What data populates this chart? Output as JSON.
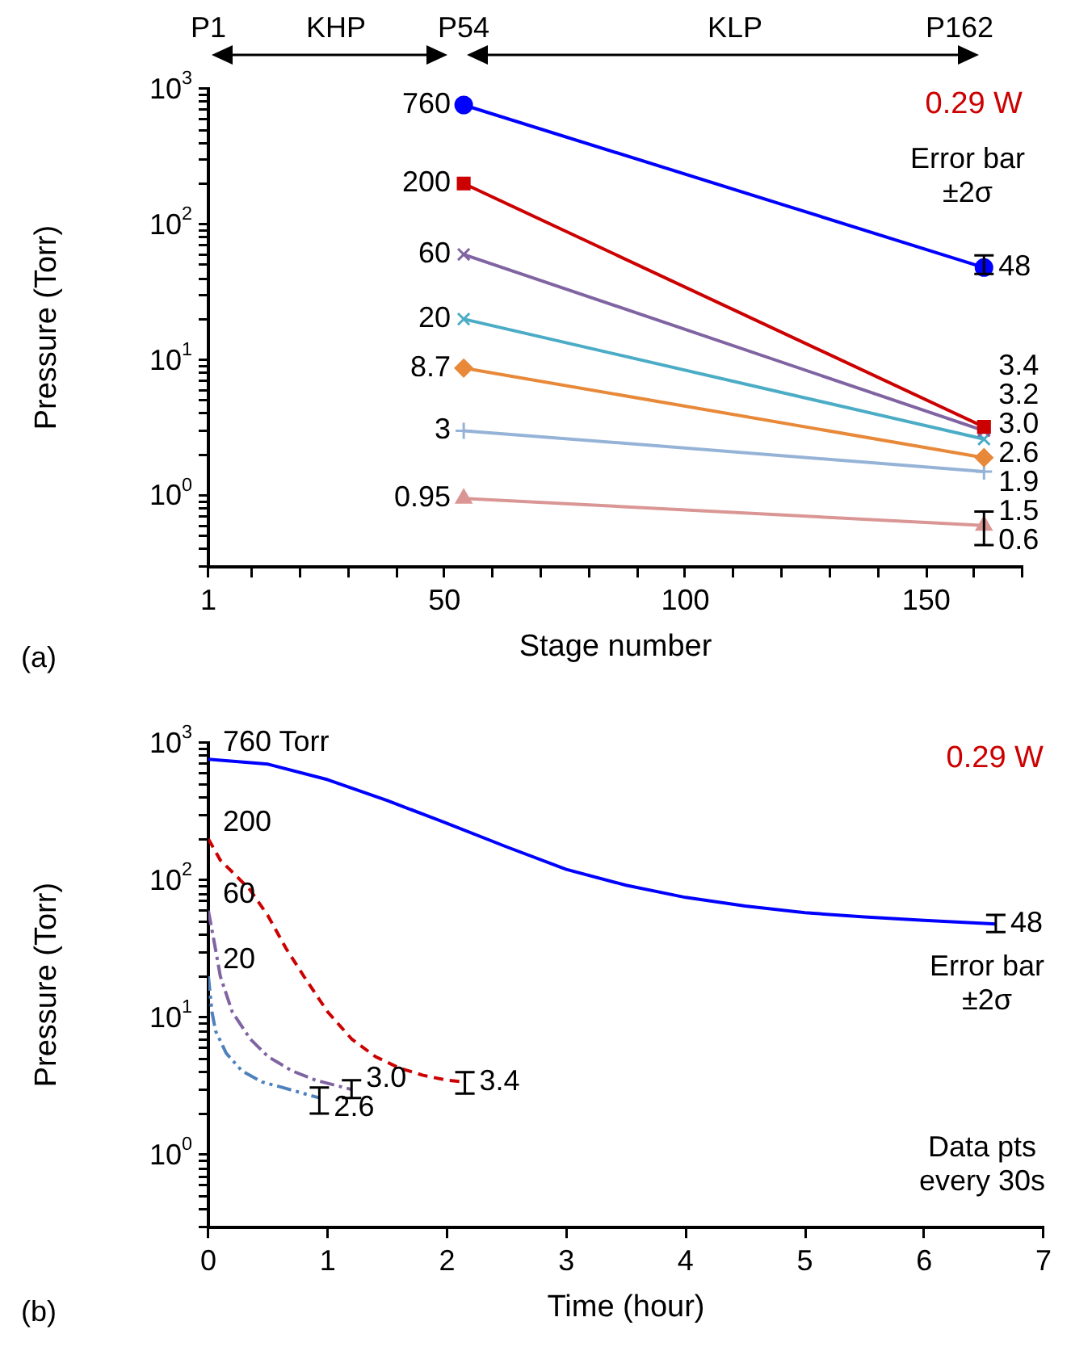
{
  "chart_data": [
    {
      "type": "line",
      "title": "0.29 W",
      "xlabel": "Stage number",
      "ylabel": "Pressure (Torr)",
      "log": "y",
      "x": [
        54,
        162
      ],
      "series": [
        {
          "color": "#0000ff",
          "marker": "circle",
          "values": [
            760,
            48
          ],
          "value_labels": [
            "760",
            "48"
          ],
          "errors": [
            null,
            [
              43,
              59
            ]
          ]
        },
        {
          "color": "#cc0000",
          "marker": "square",
          "values": [
            200,
            3.2
          ],
          "value_labels": [
            "200",
            "3.2"
          ]
        },
        {
          "color": "#8064a2",
          "marker": "cross",
          "values": [
            60,
            3.0
          ],
          "value_labels": [
            "60",
            "3.0"
          ]
        },
        {
          "color": "#4bacc6",
          "marker": "cross",
          "values": [
            20,
            2.6
          ],
          "value_labels": [
            "20",
            "2.6"
          ]
        },
        {
          "color": "#e8893a",
          "marker": "diamond",
          "values": [
            8.7,
            1.9
          ],
          "value_labels": [
            "8.7",
            "1.9"
          ]
        },
        {
          "color": "#95b3d7",
          "marker": "plus",
          "values": [
            3,
            1.5
          ],
          "value_labels": [
            "3",
            "1.5"
          ]
        },
        {
          "color": "#d99694",
          "marker": "triangle",
          "values": [
            0.95,
            0.6
          ],
          "value_labels": [
            "0.95",
            "0.6"
          ],
          "errors": [
            null,
            [
              0.43,
              0.76
            ]
          ]
        }
      ],
      "xlim": [
        1,
        170
      ],
      "xticks": [
        1,
        {
          "value": 10,
          "label": null
        },
        {
          "value": 20,
          "label": null
        },
        {
          "value": 30,
          "label": null
        },
        {
          "value": 40,
          "label": null
        },
        50,
        {
          "value": 60,
          "label": null
        },
        {
          "value": 70,
          "label": null
        },
        {
          "value": 80,
          "label": null
        },
        {
          "value": 90,
          "label": null
        },
        100,
        {
          "value": 110,
          "label": null
        },
        {
          "value": 120,
          "label": null
        },
        {
          "value": 130,
          "label": null
        },
        {
          "value": 140,
          "label": null
        },
        150,
        {
          "value": 160,
          "label": null
        },
        {
          "value": 170,
          "label": null
        }
      ],
      "ylim": [
        0.3,
        1000
      ],
      "yticks": [
        {
          "value": 0.3,
          "label": null
        },
        {
          "value": 0.4,
          "label": null
        },
        {
          "value": 0.5,
          "label": null
        },
        {
          "value": 0.6,
          "label": null
        },
        {
          "value": 0.7,
          "label": null
        },
        {
          "value": 0.8,
          "label": null
        },
        {
          "value": 0.9,
          "label": null
        },
        {
          "value": 1,
          "label": "10$^{0}$"
        },
        {
          "value": 2,
          "label": null
        },
        {
          "value": 3,
          "label": null
        },
        {
          "value": 4,
          "label": null
        },
        {
          "value": 5,
          "label": null
        },
        {
          "value": 6,
          "label": null
        },
        {
          "value": 7,
          "label": null
        },
        {
          "value": 8,
          "label": null
        },
        {
          "value": 9,
          "label": null
        },
        {
          "value": 10,
          "label": "10$^{1}$"
        },
        {
          "value": 20,
          "label": null
        },
        {
          "value": 30,
          "label": null
        },
        {
          "value": 40,
          "label": null
        },
        {
          "value": 50,
          "label": null
        },
        {
          "value": 60,
          "label": null
        },
        {
          "value": 70,
          "label": null
        },
        {
          "value": 80,
          "label": null
        },
        {
          "value": 90,
          "label": null
        },
        {
          "value": 100,
          "label": "10$^{2}$"
        },
        {
          "value": 200,
          "label": null
        },
        {
          "value": 300,
          "label": null
        },
        {
          "value": 400,
          "label": null
        },
        {
          "value": 500,
          "label": null
        },
        {
          "value": 600,
          "label": null
        },
        {
          "value": 700,
          "label": null
        },
        {
          "value": 800,
          "label": null
        },
        {
          "value": 900,
          "label": null
        },
        {
          "value": 1000,
          "label": "10$^{3}$"
        }
      ],
      "grid": false,
      "line_style": "solid",
      "annotations": [
        "(a)",
        "Error bar ±2σ",
        {
          "text": "3.4",
          "x": 162,
          "y": 3.4
        },
        "P1",
        "KHP",
        "P54",
        "KLP",
        "P162"
      ]
    },
    {
      "type": "line",
      "title": "0.29 W",
      "xlabel": "Time (hour)",
      "ylabel": "Pressure (Torr)",
      "log": "y",
      "marker": "none",
      "series": [
        {
          "color": "#0000ff",
          "line_style": "solid",
          "x": [
            0,
            0.5,
            1,
            1.5,
            2,
            2.5,
            3,
            3.5,
            4,
            4.5,
            5,
            5.5,
            6,
            6.6
          ],
          "values": [
            760,
            700,
            540,
            380,
            260,
            175,
            120,
            92,
            75,
            65,
            58,
            54,
            51,
            48
          ],
          "value_labels": [
            "760 Torr",
            null,
            null,
            null,
            null,
            null,
            null,
            null,
            null,
            null,
            null,
            null,
            null,
            "48"
          ],
          "errors": [
            null,
            null,
            null,
            null,
            null,
            null,
            null,
            null,
            null,
            null,
            null,
            null,
            null,
            [
              42,
              56
            ]
          ]
        },
        {
          "color": "#cc0000",
          "line_style": "dashed",
          "x": [
            0,
            0.1,
            0.2,
            0.35,
            0.5,
            0.65,
            0.8,
            1.0,
            1.2,
            1.4,
            1.6,
            1.8,
            2.0,
            2.15
          ],
          "values": [
            200,
            140,
            115,
            85,
            55,
            32,
            20,
            11,
            7,
            5.2,
            4.3,
            3.8,
            3.5,
            3.4
          ],
          "value_labels": [
            "200",
            null,
            null,
            null,
            null,
            null,
            null,
            null,
            null,
            null,
            null,
            null,
            null,
            "3.4"
          ],
          "errors": [
            null,
            null,
            null,
            null,
            null,
            null,
            null,
            null,
            null,
            null,
            null,
            null,
            null,
            [
              2.8,
              4.0
            ]
          ]
        },
        {
          "color": "#8064a2",
          "line_style": "dashdot",
          "x": [
            0,
            0.05,
            0.1,
            0.2,
            0.35,
            0.5,
            0.7,
            0.9,
            1.2
          ],
          "values": [
            60,
            35,
            20,
            11,
            7,
            5.2,
            4.1,
            3.5,
            3.0
          ],
          "value_labels": [
            "60",
            null,
            null,
            null,
            null,
            null,
            null,
            null,
            "3.0"
          ],
          "errors": [
            null,
            null,
            null,
            null,
            null,
            null,
            null,
            null,
            [
              2.6,
              3.5
            ]
          ]
        },
        {
          "color": "#4f81bd",
          "line_style": "dashdotdot",
          "x": [
            0,
            0.03,
            0.06,
            0.15,
            0.28,
            0.45,
            0.62,
            0.8,
            0.93
          ],
          "values": [
            20,
            11,
            8,
            5.5,
            4.1,
            3.4,
            3.1,
            2.8,
            2.6
          ],
          "value_labels": [
            "20",
            null,
            null,
            null,
            null,
            null,
            null,
            null,
            "2.6"
          ],
          "errors": [
            null,
            null,
            null,
            null,
            null,
            null,
            null,
            null,
            [
              2.0,
              3.1
            ]
          ]
        }
      ],
      "xlim": [
        0,
        7
      ],
      "xticks": [
        0,
        1,
        2,
        3,
        4,
        5,
        6,
        7
      ],
      "ylim": [
        0.3,
        1000
      ],
      "yticks": [
        {
          "value": 0.3,
          "label": null
        },
        {
          "value": 0.4,
          "label": null
        },
        {
          "value": 0.5,
          "label": null
        },
        {
          "value": 0.6,
          "label": null
        },
        {
          "value": 0.7,
          "label": null
        },
        {
          "value": 0.8,
          "label": null
        },
        {
          "value": 0.9,
          "label": null
        },
        {
          "value": 1,
          "label": "10$^{0}$"
        },
        {
          "value": 2,
          "label": null
        },
        {
          "value": 3,
          "label": null
        },
        {
          "value": 4,
          "label": null
        },
        {
          "value": 5,
          "label": null
        },
        {
          "value": 6,
          "label": null
        },
        {
          "value": 7,
          "label": null
        },
        {
          "value": 8,
          "label": null
        },
        {
          "value": 9,
          "label": null
        },
        {
          "value": 10,
          "label": "10$^{1}$"
        },
        {
          "value": 20,
          "label": null
        },
        {
          "value": 30,
          "label": null
        },
        {
          "value": 40,
          "label": null
        },
        {
          "value": 50,
          "label": null
        },
        {
          "value": 60,
          "label": null
        },
        {
          "value": 70,
          "label": null
        },
        {
          "value": 80,
          "label": null
        },
        {
          "value": 90,
          "label": null
        },
        {
          "value": 100,
          "label": "10$^{2}$"
        },
        {
          "value": 200,
          "label": null
        },
        {
          "value": 300,
          "label": null
        },
        {
          "value": 400,
          "label": null
        },
        {
          "value": 500,
          "label": null
        },
        {
          "value": 600,
          "label": null
        },
        {
          "value": 700,
          "label": null
        },
        {
          "value": 800,
          "label": null
        },
        {
          "value": 900,
          "label": null
        },
        {
          "value": 1000,
          "label": "10$^{3}$"
        }
      ],
      "grid": false,
      "annotations": [
        "(b)",
        "Error bar ±2σ",
        "Data pts every 30s"
      ]
    }
  ]
}
